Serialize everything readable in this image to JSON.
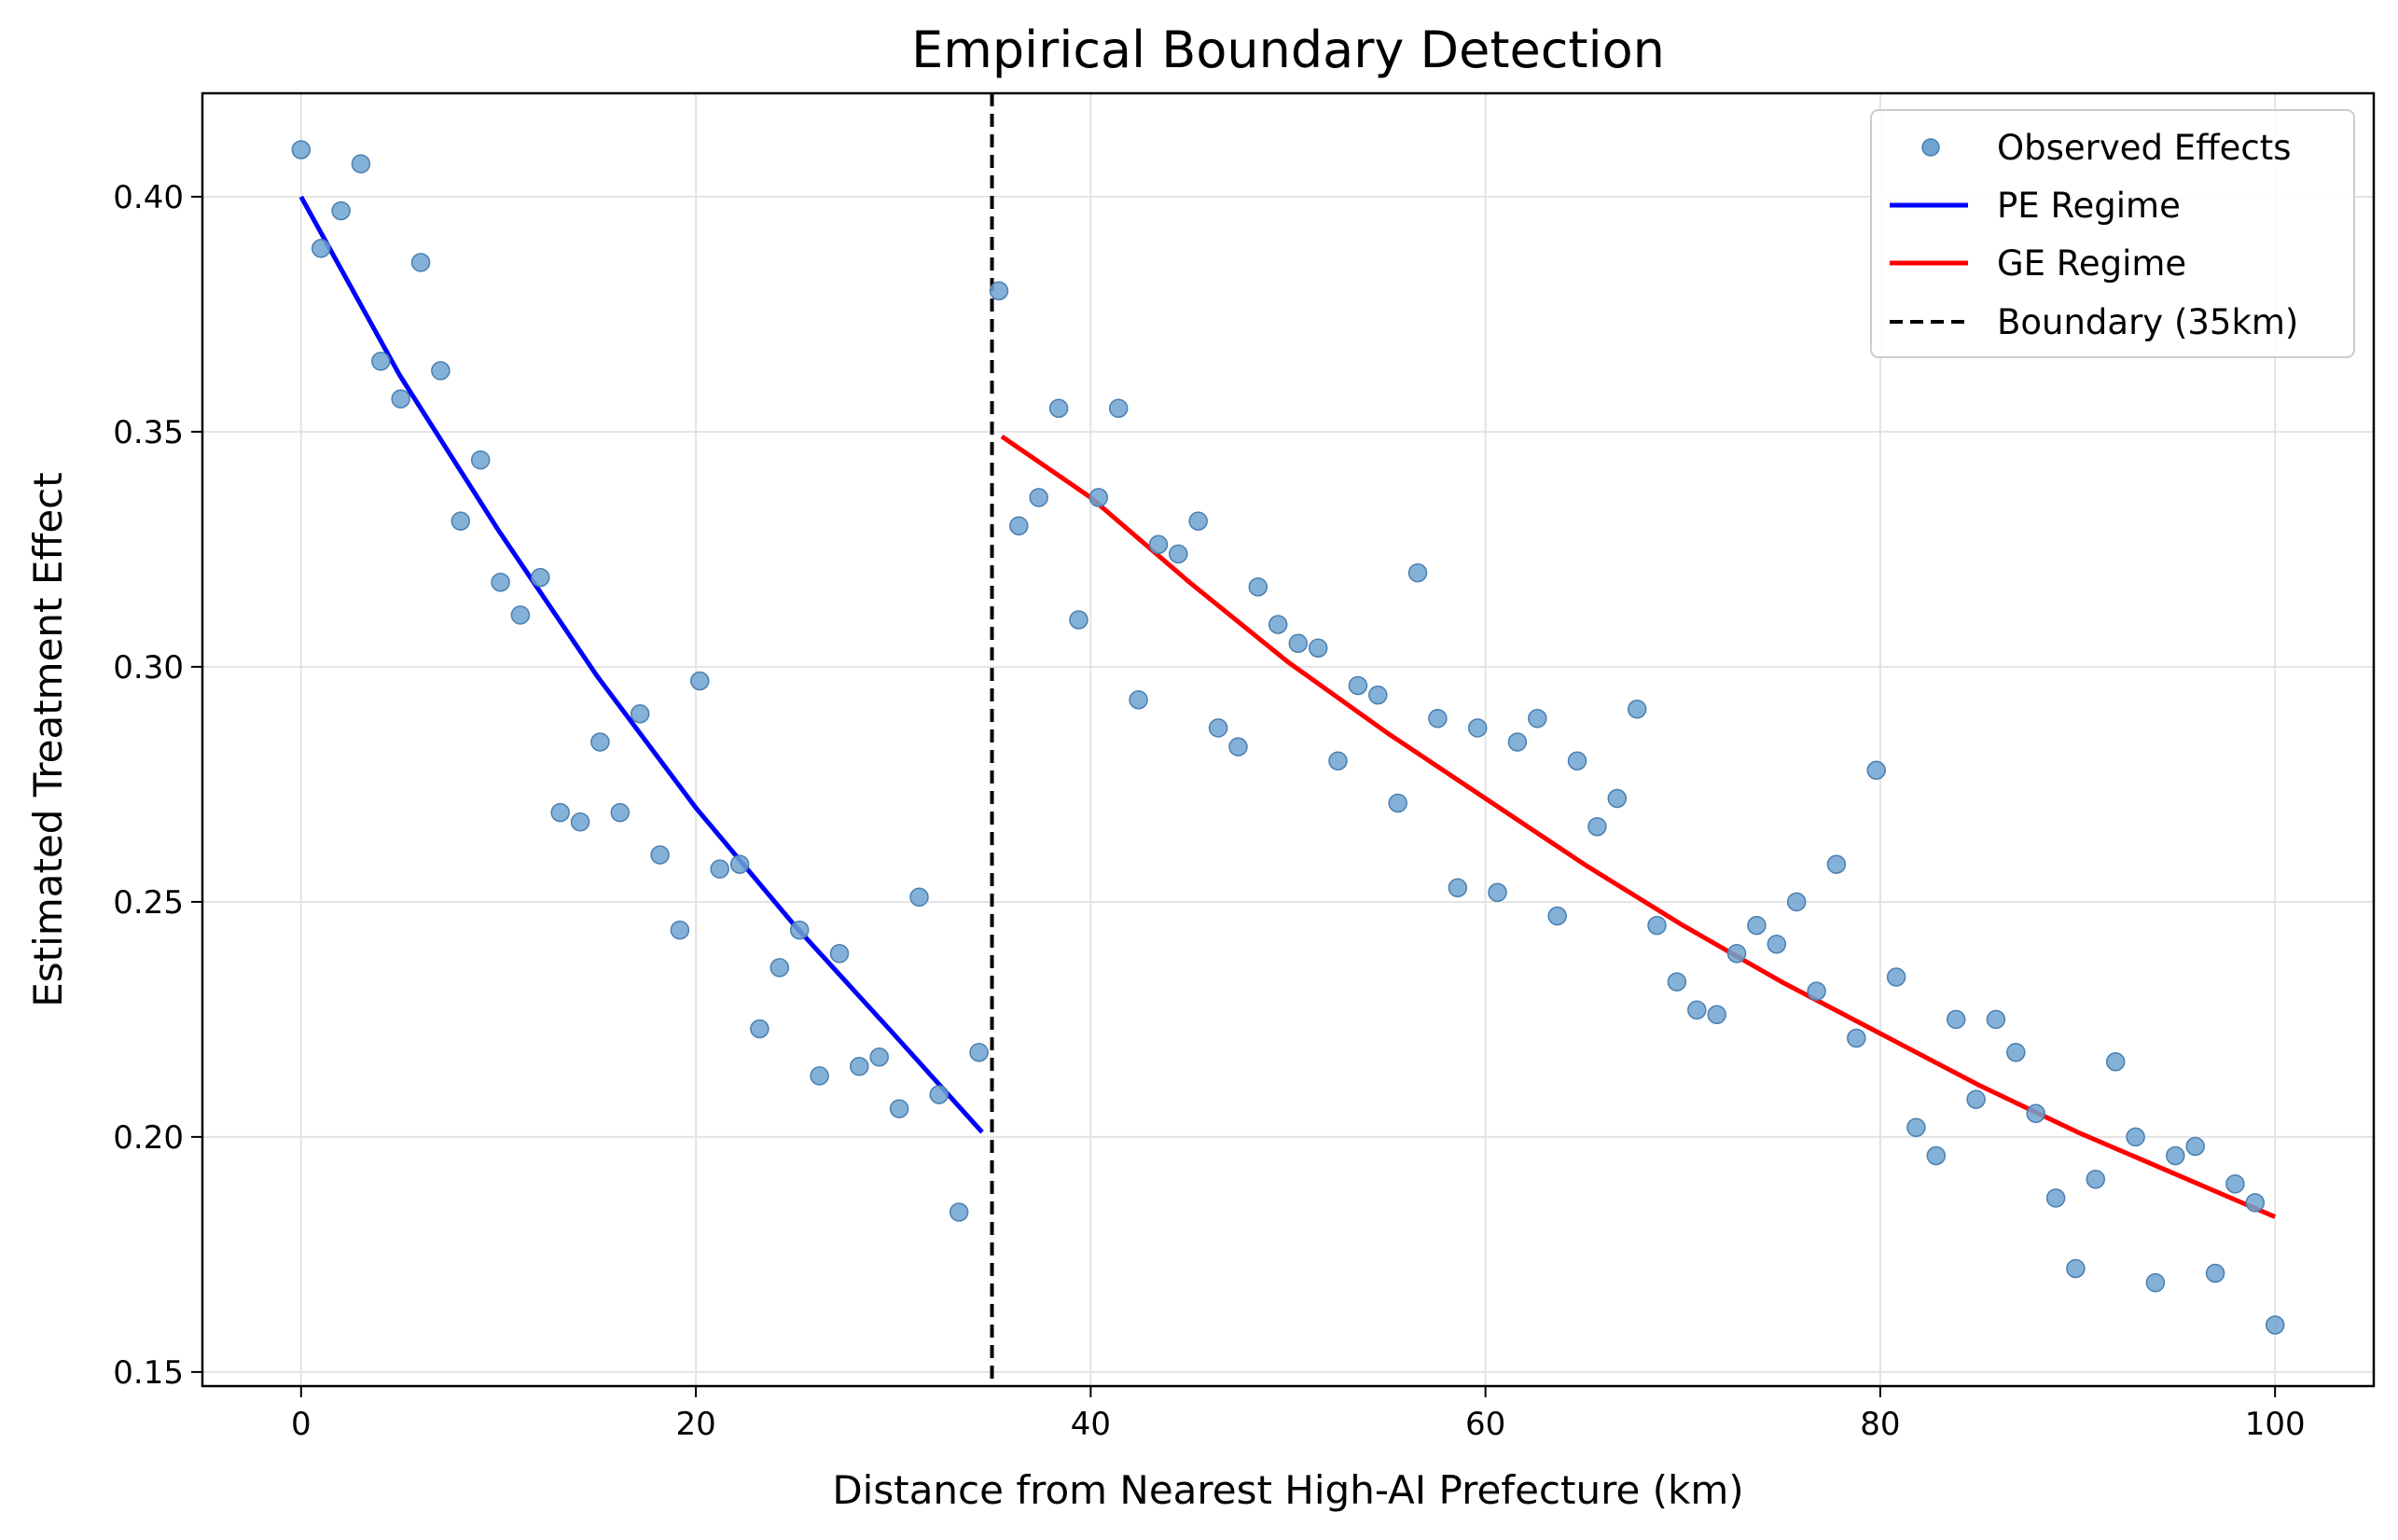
{
  "chart_data": {
    "type": "scatter",
    "title": "Empirical Boundary Detection",
    "xlabel": "Distance from Nearest High-AI Prefecture (km)",
    "ylabel": "Estimated Treatment Effect",
    "xlim": [
      -5,
      105
    ],
    "ylim": [
      0.147,
      0.422
    ],
    "xticks": [
      0,
      20,
      40,
      60,
      80,
      100
    ],
    "xtick_labels": [
      "0",
      "20",
      "40",
      "60",
      "80",
      "100"
    ],
    "yticks": [
      0.15,
      0.2,
      0.25,
      0.3,
      0.35,
      0.4
    ],
    "ytick_labels": [
      "0.15",
      "0.20",
      "0.25",
      "0.30",
      "0.35",
      "0.40"
    ],
    "grid": true,
    "legend_position": "top-right",
    "series": [
      {
        "name": "Observed Effects",
        "kind": "scatter",
        "color": "#6fa3d0",
        "x": [
          0,
          1.01,
          2.02,
          3.03,
          4.04,
          5.05,
          6.06,
          7.07,
          8.08,
          9.09,
          10.1,
          11.11,
          12.12,
          13.13,
          14.14,
          15.15,
          16.16,
          17.17,
          18.18,
          19.19,
          20.2,
          21.21,
          22.22,
          23.23,
          24.24,
          25.25,
          26.26,
          27.27,
          28.28,
          29.29,
          30.3,
          31.31,
          32.32,
          33.33,
          34.34,
          35.35,
          36.36,
          37.37,
          38.38,
          39.39,
          40.4,
          41.41,
          42.42,
          43.43,
          44.44,
          45.45,
          46.46,
          47.47,
          48.48,
          49.49,
          50.51,
          51.52,
          52.53,
          53.54,
          54.55,
          55.56,
          56.57,
          57.58,
          58.59,
          59.6,
          60.61,
          61.62,
          62.63,
          63.64,
          64.65,
          65.66,
          66.67,
          67.68,
          68.69,
          69.7,
          70.71,
          71.72,
          72.73,
          73.74,
          74.75,
          75.76,
          76.77,
          77.78,
          78.79,
          79.8,
          80.81,
          81.82,
          82.83,
          83.84,
          84.85,
          85.86,
          86.87,
          87.88,
          88.89,
          89.9,
          90.91,
          91.92,
          92.93,
          93.94,
          94.95,
          95.96,
          96.97,
          97.98,
          98.99,
          100
        ],
        "y": [
          0.41,
          0.389,
          0.397,
          0.407,
          0.365,
          0.357,
          0.386,
          0.363,
          0.331,
          0.344,
          0.318,
          0.311,
          0.319,
          0.269,
          0.267,
          0.284,
          0.269,
          0.29,
          0.26,
          0.244,
          0.297,
          0.257,
          0.258,
          0.223,
          0.236,
          0.244,
          0.213,
          0.239,
          0.215,
          0.217,
          0.206,
          0.251,
          0.209,
          0.184,
          0.218,
          0.38,
          0.33,
          0.336,
          0.355,
          0.31,
          0.336,
          0.355,
          0.293,
          0.326,
          0.324,
          0.331,
          0.287,
          0.283,
          0.317,
          0.309,
          0.305,
          0.304,
          0.28,
          0.296,
          0.294,
          0.271,
          0.32,
          0.289,
          0.253,
          0.287,
          0.252,
          0.284,
          0.289,
          0.247,
          0.28,
          0.266,
          0.272,
          0.291,
          0.245,
          0.233,
          0.227,
          0.226,
          0.239,
          0.245,
          0.241,
          0.25,
          0.231,
          0.258,
          0.221,
          0.278,
          0.234,
          0.202,
          0.196,
          0.225,
          0.208,
          0.225,
          0.218,
          0.205,
          0.187,
          0.172,
          0.191,
          0.216,
          0.2,
          0.169,
          0.196,
          0.198,
          0.171,
          0.19,
          0.186,
          0.16
        ]
      },
      {
        "name": "PE Regime",
        "kind": "line",
        "color": "#0000ff",
        "x": [
          0,
          5,
          10,
          15,
          20,
          25,
          30,
          34.5
        ],
        "y": [
          0.4,
          0.362,
          0.329,
          0.298,
          0.27,
          0.245,
          0.222,
          0.201
        ]
      },
      {
        "name": "GE Regime",
        "kind": "line",
        "color": "#ff0000",
        "x": [
          35.5,
          40,
          45,
          50,
          55,
          60,
          65,
          70,
          75,
          80,
          85,
          90,
          95,
          100
        ],
        "y": [
          0.349,
          0.336,
          0.318,
          0.301,
          0.286,
          0.272,
          0.258,
          0.245,
          0.233,
          0.222,
          0.211,
          0.201,
          0.192,
          0.183
        ]
      },
      {
        "name": "Boundary (35km)",
        "kind": "vline",
        "color": "#000000",
        "x_value": 35
      }
    ]
  }
}
